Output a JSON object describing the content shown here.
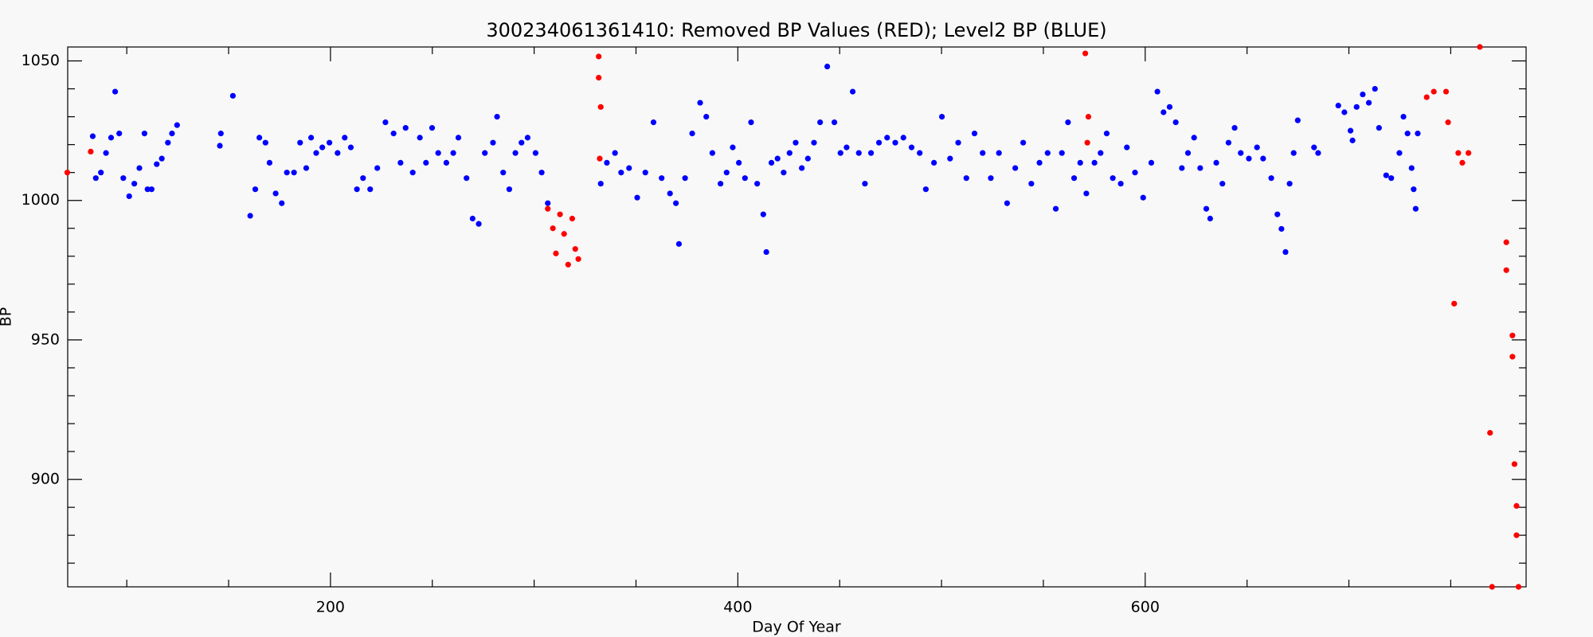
{
  "chart_data": {
    "type": "scatter",
    "title": "300234061361410: Removed BP Values (RED); Level2 BP (BLUE)",
    "x_label": "Day Of Year",
    "y_label": "BP",
    "xlim": [
      71,
      787
    ],
    "ylim": [
      861.5,
      1055
    ],
    "xticks": [
      200,
      400,
      600
    ],
    "xminorticks": [
      100,
      150,
      250,
      300,
      350,
      450,
      500,
      550,
      650,
      700,
      750
    ],
    "yticks": [
      900,
      950,
      1000,
      1050
    ],
    "yminorticks": [
      870,
      880,
      890,
      910,
      920,
      930,
      940,
      960,
      970,
      980,
      990,
      1010,
      1020,
      1030,
      1040
    ],
    "series": [
      {
        "color": "#0000ff",
        "x": [
          83.3,
          84.8,
          87.3,
          89.8,
          92.3,
          94.3,
          96.3,
          98.3,
          101.2,
          103.7,
          106.2,
          108.7,
          110.2,
          112.2,
          114.7,
          117.2,
          120.2,
          122.2,
          124.7,
          145.7,
          146.2,
          152.1,
          160.6,
          163.1,
          165.1,
          168.1,
          170.1,
          173.1,
          176.1,
          178.6,
          182.1,
          185.1,
          188.1,
          190.5,
          193,
          196,
          199.5,
          203.5,
          207,
          210,
          213,
          216,
          219.5,
          223,
          227,
          231,
          234.4,
          236.9,
          240.4,
          243.9,
          246.9,
          249.9,
          252.9,
          256.9,
          260.3,
          262.8,
          266.8,
          269.8,
          272.8,
          275.8,
          279.8,
          281.8,
          284.8,
          287.8,
          290.8,
          293.8,
          296.8,
          300.7,
          303.7,
          306.7,
          332.7,
          335.7,
          339.7,
          342.7,
          346.6,
          350.6,
          354.6,
          358.6,
          362.6,
          366.7,
          369.6,
          371.1,
          374.1,
          377.6,
          381.5,
          384.5,
          387.5,
          391.5,
          394.5,
          397.5,
          400.5,
          403.5,
          406.5,
          409.5,
          412.5,
          414,
          416.5,
          419.5,
          422.5,
          425.4,
          428.4,
          431.4,
          434.4,
          437.4,
          440.4,
          443.9,
          447.4,
          450.4,
          453.4,
          456.4,
          459.4,
          462.4,
          465.4,
          469.3,
          473.3,
          477.3,
          481.3,
          485.3,
          489.3,
          492.3,
          496.3,
          500.2,
          504.2,
          508.2,
          512.2,
          516.2,
          520.2,
          524.2,
          528.2,
          532.2,
          536.2,
          540.1,
          544.1,
          548.1,
          552.1,
          556.1,
          559.1,
          562.1,
          565.1,
          568.1,
          571.1,
          575.1,
          578.1,
          581.1,
          584.1,
          588,
          591,
          595,
          599,
          603,
          606,
          609,
          612,
          615,
          618,
          621,
          624,
          627,
          630,
          631.9,
          634.9,
          637.9,
          640.9,
          643.9,
          646.9,
          650.9,
          654.9,
          657.9,
          661.9,
          664.9,
          666.9,
          668.9,
          670.9,
          672.9,
          674.9,
          682.9,
          684.9,
          694.8,
          697.8,
          700.8,
          701.8,
          703.8,
          706.8,
          709.8,
          712.8,
          714.8,
          718.3,
          720.8,
          724.8,
          726.8,
          728.8,
          730.8,
          731.8,
          732.8,
          733.8
        ],
        "values": [
          1023,
          1008,
          1010,
          1017,
          1022.5,
          1039,
          1024,
          1008,
          1001.5,
          1006,
          1011.6,
          1024,
          1004,
          1004,
          1013,
          1015,
          1020.7,
          1024,
          1027,
          1019.6,
          1024,
          1037.5,
          994.5,
          1004,
          1022.5,
          1020.7,
          1013.5,
          1002.5,
          999,
          1010,
          1010,
          1020.7,
          1011.6,
          1022.5,
          1017,
          1019,
          1020.7,
          1017,
          1022.5,
          1019,
          1004,
          1008,
          1004,
          1011.6,
          1028,
          1024,
          1013.5,
          1026,
          1010,
          1022.5,
          1013.5,
          1026,
          1017,
          1013.5,
          1017,
          1022.5,
          1008,
          993.5,
          991.6,
          1017,
          1020.7,
          1030,
          1010,
          1004,
          1017,
          1020.7,
          1022.5,
          1017,
          1010,
          999,
          1006,
          1013.5,
          1017,
          1010,
          1011.6,
          1001,
          1010,
          1028,
          1008,
          1002.5,
          999,
          984.4,
          1008,
          1024,
          1035,
          1030,
          1017,
          1006,
          1010,
          1019,
          1013.5,
          1008,
          1028,
          1006,
          995,
          981.5,
          1013.5,
          1015,
          1010,
          1017,
          1020.7,
          1011.6,
          1015,
          1020.7,
          1028,
          1048,
          1028,
          1017,
          1019,
          1039,
          1017,
          1006,
          1017,
          1020.7,
          1022.5,
          1020.7,
          1022.5,
          1019,
          1017,
          1004,
          1013.5,
          1030,
          1015,
          1020.7,
          1008,
          1024,
          1017,
          1008,
          1017,
          999,
          1011.6,
          1020.7,
          1006,
          1013.5,
          1017,
          997,
          1017,
          1028,
          1008,
          1013.5,
          1002.5,
          1013.5,
          1017,
          1024,
          1008,
          1006,
          1019,
          1010,
          1001,
          1013.5,
          1039,
          1031.6,
          1033.5,
          1028,
          1011.6,
          1017,
          1022.5,
          1011.6,
          997,
          993.5,
          1013.5,
          1006,
          1020.7,
          1026,
          1017,
          1015,
          1019,
          1015,
          1008,
          995,
          989.8,
          981.5,
          1006,
          1017,
          1028.7,
          1019,
          1017,
          1034,
          1031.6,
          1025,
          1021.5,
          1033.5,
          1038,
          1035,
          1040,
          1026,
          1009,
          1008,
          1017,
          1030,
          1024,
          1011.6,
          1004,
          997,
          1024
        ]
      },
      {
        "color": "#ff0000",
        "x": [
          70.8,
          82.3,
          306.7,
          309.2,
          310.7,
          312.7,
          314.7,
          316.7,
          318.7,
          320.2,
          321.7,
          331.7,
          331.7,
          332.7,
          332.2,
          570.6,
          572.1,
          571.6,
          738.2,
          741.7,
          747.7,
          748.7,
          753.7,
          755.7,
          758.7,
          751.7,
          764.3,
          769.3,
          777.3,
          777.3,
          780.3,
          780.3,
          781.3,
          782.3,
          782.3,
          770.3,
          783.3
        ],
        "values": [
          1010,
          1017.5,
          997,
          990,
          981,
          995,
          988,
          977,
          993.5,
          982.6,
          979,
          1051.6,
          1044,
          1033.5,
          1015,
          1052.7,
          1030,
          1020.7,
          1037,
          1039,
          1039,
          1028,
          1017,
          1013.5,
          1017,
          963,
          1055,
          916.7,
          985,
          975,
          951.6,
          944,
          905.5,
          890.5,
          880,
          861.5,
          861.5
        ]
      }
    ]
  }
}
